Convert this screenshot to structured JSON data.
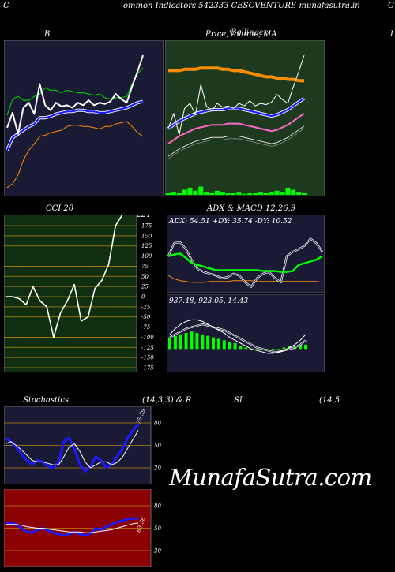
{
  "header": {
    "left_letter": "C",
    "title": "ommon  Indicators 542333 CESCVENTURE munafasutra.in",
    "right_letter": "C"
  },
  "watermark": "MunafaSutra.com",
  "panel_titles": {
    "bollinger": "B",
    "price_left": "Price,",
    "price_mid": "Volume,",
    "price_right": "MA",
    "price_overlap": "Bollinger",
    "right_edge": "I",
    "cci": "CCI 20",
    "adx_macd": "ADX  & MACD 12,26,9",
    "stochastics": "Stochastics",
    "stoch_params": "(14,3,3) & R",
    "rsi": "SI",
    "rsi_params": "(14,5"
  },
  "colors": {
    "panel_navy": "#1a1a35",
    "panel_green": "#1e3a1e",
    "panel_darkgreen": "#0f2f10",
    "panel_red": "#8b0000",
    "accent_orange": "#ff8c00",
    "line_blue": "#1a1aff",
    "line_green": "#00c000",
    "bright_green": "#00ff00"
  },
  "chart_data": [
    {
      "type": "line",
      "name": "bollinger",
      "price": [
        130,
        142,
        125,
        146,
        150,
        141,
        165,
        148,
        144,
        150,
        147,
        148,
        146,
        150,
        148,
        152,
        148,
        150,
        149,
        151,
        157,
        153,
        150,
        163,
        175,
        188
      ],
      "upper": [
        140,
        153,
        155,
        152,
        152,
        155,
        157,
        162,
        160,
        160,
        158,
        160,
        159,
        158,
        158,
        157,
        156,
        157,
        154,
        153,
        154,
        154,
        155,
        165,
        173,
        178
      ],
      "middle": [
        112,
        122,
        125,
        128,
        131,
        133,
        138,
        138,
        139,
        141,
        142,
        143,
        143,
        144,
        144,
        143,
        143,
        142,
        142,
        143,
        144,
        145,
        146,
        148,
        150,
        151
      ],
      "lower": [
        82,
        85,
        92,
        104,
        112,
        117,
        123,
        124,
        126,
        127,
        128,
        131,
        132,
        132,
        131,
        131,
        130,
        129,
        131,
        131,
        133,
        134,
        135,
        131,
        126,
        123
      ]
    },
    {
      "type": "line",
      "name": "price_volume_ma",
      "price": [
        130,
        142,
        125,
        146,
        150,
        141,
        165,
        148,
        144,
        150,
        147,
        148,
        146,
        150,
        148,
        152,
        148,
        150,
        149,
        151,
        157,
        153,
        150,
        163,
        175,
        188
      ],
      "ma_orange": [
        176,
        176,
        176,
        177,
        177,
        177,
        178,
        178,
        178,
        178,
        177,
        177,
        176,
        176,
        175,
        174,
        173,
        172,
        171,
        171,
        170,
        170,
        169,
        169,
        168,
        168
      ],
      "ma_blue": [
        130,
        133,
        136,
        138,
        140,
        142,
        143,
        144,
        145,
        145,
        145,
        146,
        146,
        146,
        145,
        144,
        143,
        142,
        141,
        140,
        141,
        143,
        145,
        148,
        151,
        154
      ],
      "volume": [
        2,
        3,
        2,
        5,
        7,
        4,
        8,
        3,
        2,
        4,
        3,
        2,
        2,
        3,
        1,
        2,
        2,
        3,
        2,
        3,
        4,
        3,
        7,
        5,
        3,
        2
      ]
    },
    {
      "type": "line",
      "name": "cci",
      "title": "CCI 20",
      "yticks": [
        175,
        150,
        125,
        100,
        75,
        50,
        25,
        0,
        -25,
        -50,
        -75,
        -100,
        -125,
        -150,
        -175
      ],
      "ylim": [
        -175,
        175
      ],
      "last_value": "224",
      "values": [
        0,
        0,
        -5,
        -20,
        25,
        -10,
        -25,
        -100,
        -40,
        -10,
        30,
        -60,
        -50,
        20,
        40,
        80,
        175,
        224
      ]
    },
    {
      "type": "line",
      "name": "adx",
      "label": "ADX: 54.51  +DY: 35.74  -DY: 10.52",
      "adx": [
        40,
        42,
        43,
        38,
        32,
        30,
        28,
        26,
        24,
        24,
        24,
        24,
        24,
        24,
        24,
        24,
        23,
        23,
        23,
        22,
        22,
        23,
        30,
        32,
        34,
        36,
        40
      ],
      "plus_dy": [
        40,
        55,
        56,
        48,
        35,
        25,
        22,
        20,
        18,
        15,
        16,
        20,
        18,
        10,
        5,
        15,
        20,
        22,
        15,
        10,
        40,
        45,
        48,
        52,
        60,
        55,
        45
      ],
      "minus_dy": [
        18,
        14,
        12,
        11,
        10,
        10,
        10,
        11,
        11,
        11,
        11,
        12,
        12,
        12,
        12,
        11,
        11,
        11,
        11,
        11,
        11,
        11,
        11,
        11,
        11,
        11,
        10
      ]
    },
    {
      "type": "bar",
      "name": "macd",
      "label": "937.48,  923.05,  14.43",
      "histogram": [
        8,
        9,
        10,
        11,
        12,
        11,
        10,
        9,
        8,
        7,
        6,
        5,
        4,
        2,
        1,
        0,
        -1,
        -1,
        -1,
        -1,
        0,
        1,
        2,
        2,
        3,
        3
      ],
      "macd": [
        10,
        14,
        17,
        19,
        20,
        20,
        19,
        17,
        15,
        13,
        11,
        8,
        6,
        4,
        2,
        0,
        -1,
        -2,
        -3,
        -3,
        -2,
        -1,
        1,
        3,
        6,
        10
      ],
      "signal": [
        8,
        10,
        12,
        14,
        15,
        16,
        17,
        16,
        15,
        14,
        13,
        11,
        9,
        7,
        5,
        3,
        1,
        0,
        -1,
        -2,
        -2,
        -1,
        0,
        1,
        3,
        6
      ]
    },
    {
      "type": "line",
      "name": "stochastics",
      "yticks": [
        80,
        50,
        20
      ],
      "ylim": [
        0,
        100
      ],
      "last_label": "75.59",
      "k": [
        60,
        55,
        48,
        38,
        30,
        25,
        30,
        28,
        22,
        20,
        28,
        55,
        60,
        45,
        25,
        15,
        22,
        35,
        30,
        20,
        25,
        35,
        45,
        60,
        70,
        78
      ],
      "d": [
        52,
        55,
        50,
        44,
        37,
        30,
        28,
        28,
        26,
        24,
        24,
        35,
        48,
        52,
        42,
        28,
        20,
        24,
        28,
        28,
        24,
        27,
        34,
        46,
        58,
        70
      ]
    },
    {
      "type": "line",
      "name": "rsi",
      "yticks": [
        80,
        50,
        20
      ],
      "ylim": [
        0,
        100
      ],
      "last_label": "63.36",
      "rsi": [
        58,
        57,
        55,
        50,
        45,
        44,
        48,
        50,
        47,
        44,
        42,
        40,
        42,
        45,
        42,
        40,
        43,
        50,
        48,
        52,
        55,
        58,
        60,
        62,
        63,
        63
      ],
      "avg": [
        55,
        55,
        55,
        54,
        52,
        51,
        50,
        50,
        49,
        48,
        47,
        46,
        45,
        45,
        45,
        44,
        44,
        45,
        46,
        47,
        48,
        50,
        52,
        54,
        56,
        57
      ]
    }
  ]
}
